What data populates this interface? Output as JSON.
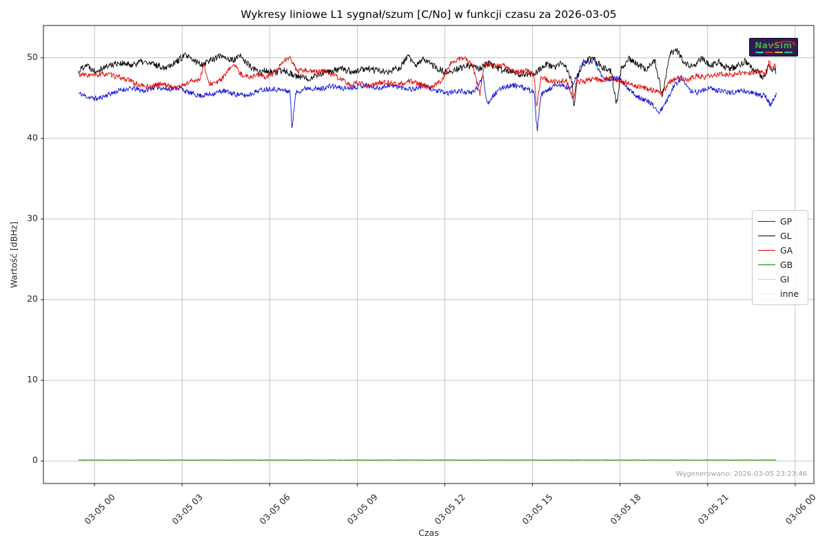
{
  "figure": {
    "generated_note": "Wygenerowano: 2026-03-05 23:23:46",
    "background": "#ffffff"
  },
  "logo": {
    "text": "NavSim",
    "bg": "#311b52",
    "text_color": "#3cb043",
    "swoosh_color": "#d42a1e",
    "subtext_dash_colors": [
      "#2ad4d4",
      "#d43a2a",
      "#e0c030",
      "#2ad46a"
    ]
  },
  "chart_data": {
    "type": "line",
    "title": "Wykresy liniowe L1 sygnał/szum [C/No] w funkcji czasu za 2026-03-05",
    "xlabel": "Czas",
    "ylabel": "Wartość [dBHz]",
    "grid": true,
    "grid_color": "#b5b5b5",
    "frame_color": "#1a1a1a",
    "legend_position": "center right",
    "x_ticks": [
      {
        "hour": 0,
        "label": "03-05 00"
      },
      {
        "hour": 3,
        "label": "03-05 03"
      },
      {
        "hour": 6,
        "label": "03-05 06"
      },
      {
        "hour": 9,
        "label": "03-05 09"
      },
      {
        "hour": 12,
        "label": "03-05 12"
      },
      {
        "hour": 15,
        "label": "03-05 15"
      },
      {
        "hour": 18,
        "label": "03-05 18"
      },
      {
        "hour": 21,
        "label": "03-05 21"
      },
      {
        "hour": 24,
        "label": "03-06 00"
      }
    ],
    "y_ticks": [
      0,
      10,
      20,
      30,
      40,
      50
    ],
    "xlim_hours": [
      -1.75,
      24.64
    ],
    "ylim": [
      -2.8,
      54.0
    ],
    "series": [
      {
        "name": "GP",
        "color": "#0d0dd6",
        "width": 0.9,
        "noise": 0.32,
        "seed": 11,
        "z": 0,
        "keypoints": [
          [
            -0.55,
            45.6
          ],
          [
            -0.2,
            45.1
          ],
          [
            0.1,
            44.9
          ],
          [
            0.5,
            45.5
          ],
          [
            0.9,
            46.0
          ],
          [
            1.3,
            46.2
          ],
          [
            1.7,
            45.9
          ],
          [
            2.1,
            46.4
          ],
          [
            2.5,
            46.1
          ],
          [
            2.9,
            46.3
          ],
          [
            3.2,
            45.7
          ],
          [
            3.6,
            45.3
          ],
          [
            4.0,
            45.5
          ],
          [
            4.4,
            45.9
          ],
          [
            4.8,
            45.5
          ],
          [
            5.2,
            45.3
          ],
          [
            5.6,
            45.9
          ],
          [
            6.0,
            46.2
          ],
          [
            6.4,
            46.0
          ],
          [
            6.7,
            45.8
          ],
          [
            6.76,
            41.3
          ],
          [
            6.9,
            45.7
          ],
          [
            7.3,
            46.3
          ],
          [
            7.7,
            46.1
          ],
          [
            8.1,
            46.5
          ],
          [
            8.5,
            46.2
          ],
          [
            8.9,
            46.4
          ],
          [
            9.3,
            46.6
          ],
          [
            9.7,
            46.2
          ],
          [
            10.1,
            46.6
          ],
          [
            10.5,
            46.3
          ],
          [
            10.9,
            46.1
          ],
          [
            11.3,
            46.5
          ],
          [
            11.7,
            45.9
          ],
          [
            12.1,
            45.6
          ],
          [
            12.5,
            45.9
          ],
          [
            12.9,
            45.6
          ],
          [
            13.15,
            46.4
          ],
          [
            13.3,
            48.0
          ],
          [
            13.45,
            44.3
          ],
          [
            13.65,
            45.3
          ],
          [
            14.0,
            46.4
          ],
          [
            14.4,
            46.6
          ],
          [
            14.8,
            46.1
          ],
          [
            15.05,
            45.8
          ],
          [
            15.16,
            41.0
          ],
          [
            15.3,
            45.4
          ],
          [
            15.7,
            46.4
          ],
          [
            16.0,
            46.6
          ],
          [
            16.3,
            46.1
          ],
          [
            16.55,
            47.9
          ],
          [
            16.75,
            49.8
          ],
          [
            16.95,
            49.2
          ],
          [
            17.1,
            49.9
          ],
          [
            17.35,
            47.9
          ],
          [
            17.65,
            47.2
          ],
          [
            17.95,
            47.5
          ],
          [
            18.25,
            46.2
          ],
          [
            18.55,
            45.3
          ],
          [
            18.85,
            44.8
          ],
          [
            19.1,
            44.2
          ],
          [
            19.35,
            43.2
          ],
          [
            19.6,
            44.6
          ],
          [
            19.85,
            46.6
          ],
          [
            20.1,
            47.5
          ],
          [
            20.35,
            46.0
          ],
          [
            20.65,
            45.7
          ],
          [
            21.0,
            46.2
          ],
          [
            21.4,
            45.9
          ],
          [
            21.8,
            45.7
          ],
          [
            22.2,
            45.9
          ],
          [
            22.6,
            45.6
          ],
          [
            23.0,
            45.2
          ],
          [
            23.15,
            44.1
          ],
          [
            23.35,
            45.4
          ]
        ]
      },
      {
        "name": "GL",
        "color": "#000000",
        "width": 0.9,
        "noise": 0.42,
        "seed": 22,
        "z": 1,
        "keypoints": [
          [
            -0.55,
            48.3
          ],
          [
            -0.3,
            49.2
          ],
          [
            0.0,
            48.4
          ],
          [
            0.4,
            48.9
          ],
          [
            0.8,
            49.4
          ],
          [
            1.2,
            49.1
          ],
          [
            1.6,
            49.5
          ],
          [
            2.0,
            49.2
          ],
          [
            2.4,
            48.8
          ],
          [
            2.8,
            49.5
          ],
          [
            3.1,
            50.3
          ],
          [
            3.4,
            49.6
          ],
          [
            3.7,
            49.2
          ],
          [
            4.0,
            49.8
          ],
          [
            4.4,
            50.3
          ],
          [
            4.7,
            49.6
          ],
          [
            5.0,
            50.2
          ],
          [
            5.3,
            49.0
          ],
          [
            5.6,
            48.2
          ],
          [
            5.9,
            48.4
          ],
          [
            6.2,
            48.1
          ],
          [
            6.5,
            48.5
          ],
          [
            6.9,
            47.7
          ],
          [
            7.3,
            47.4
          ],
          [
            7.7,
            48.0
          ],
          [
            8.1,
            48.3
          ],
          [
            8.5,
            48.6
          ],
          [
            8.9,
            48.2
          ],
          [
            9.3,
            48.7
          ],
          [
            9.7,
            48.4
          ],
          [
            10.1,
            48.2
          ],
          [
            10.5,
            48.9
          ],
          [
            10.75,
            50.3
          ],
          [
            11.0,
            48.9
          ],
          [
            11.3,
            49.9
          ],
          [
            11.6,
            49.0
          ],
          [
            12.0,
            48.2
          ],
          [
            12.4,
            48.6
          ],
          [
            12.8,
            49.0
          ],
          [
            13.2,
            48.6
          ],
          [
            13.5,
            49.3
          ],
          [
            13.9,
            48.5
          ],
          [
            14.3,
            48.2
          ],
          [
            14.7,
            47.9
          ],
          [
            15.1,
            48.1
          ],
          [
            15.45,
            49.3
          ],
          [
            15.75,
            48.7
          ],
          [
            16.05,
            49.4
          ],
          [
            16.35,
            47.2
          ],
          [
            16.42,
            43.6
          ],
          [
            16.55,
            47.8
          ],
          [
            16.85,
            49.7
          ],
          [
            17.1,
            49.9
          ],
          [
            17.4,
            48.9
          ],
          [
            17.7,
            48.4
          ],
          [
            17.88,
            44.2
          ],
          [
            18.05,
            48.8
          ],
          [
            18.3,
            49.9
          ],
          [
            18.6,
            49.2
          ],
          [
            18.9,
            48.6
          ],
          [
            19.2,
            49.6
          ],
          [
            19.45,
            45.2
          ],
          [
            19.7,
            50.5
          ],
          [
            19.95,
            50.9
          ],
          [
            20.2,
            49.3
          ],
          [
            20.5,
            48.8
          ],
          [
            20.8,
            49.9
          ],
          [
            21.1,
            49.1
          ],
          [
            21.4,
            49.5
          ],
          [
            21.7,
            48.6
          ],
          [
            22.0,
            48.9
          ],
          [
            22.3,
            49.6
          ],
          [
            22.6,
            48.4
          ],
          [
            22.9,
            47.6
          ],
          [
            23.1,
            48.8
          ],
          [
            23.35,
            48.4
          ]
        ]
      },
      {
        "name": "GA",
        "color": "#e00000",
        "width": 0.9,
        "noise": 0.32,
        "seed": 33,
        "z": 2,
        "keypoints": [
          [
            -0.55,
            47.9
          ],
          [
            0.0,
            47.8
          ],
          [
            0.4,
            48.0
          ],
          [
            0.8,
            47.6
          ],
          [
            1.2,
            47.2
          ],
          [
            1.5,
            46.6
          ],
          [
            1.9,
            46.4
          ],
          [
            2.3,
            46.8
          ],
          [
            2.7,
            46.3
          ],
          [
            3.0,
            46.5
          ],
          [
            3.3,
            47.1
          ],
          [
            3.6,
            47.3
          ],
          [
            3.75,
            49.2
          ],
          [
            3.9,
            46.8
          ],
          [
            4.2,
            46.9
          ],
          [
            4.5,
            47.9
          ],
          [
            4.75,
            49.3
          ],
          [
            5.0,
            48.0
          ],
          [
            5.3,
            47.6
          ],
          [
            5.6,
            47.9
          ],
          [
            5.9,
            47.6
          ],
          [
            6.2,
            48.2
          ],
          [
            6.5,
            49.7
          ],
          [
            6.7,
            49.9
          ],
          [
            6.95,
            48.3
          ],
          [
            7.25,
            48.5
          ],
          [
            7.55,
            48.2
          ],
          [
            7.85,
            48.4
          ],
          [
            8.15,
            47.9
          ],
          [
            8.45,
            47.3
          ],
          [
            8.75,
            46.6
          ],
          [
            9.05,
            46.9
          ],
          [
            9.35,
            46.5
          ],
          [
            9.65,
            46.8
          ],
          [
            10.0,
            47.0
          ],
          [
            10.4,
            46.7
          ],
          [
            10.8,
            47.1
          ],
          [
            11.2,
            46.6
          ],
          [
            11.5,
            46.3
          ],
          [
            11.9,
            47.2
          ],
          [
            12.2,
            49.3
          ],
          [
            12.45,
            49.8
          ],
          [
            12.7,
            49.9
          ],
          [
            12.95,
            49.0
          ],
          [
            13.2,
            45.5
          ],
          [
            13.35,
            49.3
          ],
          [
            13.55,
            49.1
          ],
          [
            13.75,
            48.9
          ],
          [
            13.95,
            49.3
          ],
          [
            14.2,
            48.5
          ],
          [
            14.5,
            48.2
          ],
          [
            14.8,
            48.4
          ],
          [
            15.05,
            47.9
          ],
          [
            15.14,
            43.9
          ],
          [
            15.3,
            47.7
          ],
          [
            15.6,
            47.1
          ],
          [
            15.9,
            46.9
          ],
          [
            16.15,
            47.3
          ],
          [
            16.4,
            44.8
          ],
          [
            16.5,
            47.0
          ],
          [
            16.8,
            47.1
          ],
          [
            17.1,
            47.4
          ],
          [
            17.4,
            47.2
          ],
          [
            17.7,
            47.5
          ],
          [
            18.0,
            47.1
          ],
          [
            18.3,
            46.8
          ],
          [
            18.6,
            46.4
          ],
          [
            18.9,
            46.2
          ],
          [
            19.2,
            45.9
          ],
          [
            19.45,
            45.7
          ],
          [
            19.7,
            47.0
          ],
          [
            20.0,
            47.5
          ],
          [
            20.3,
            47.2
          ],
          [
            20.6,
            47.7
          ],
          [
            20.9,
            47.6
          ],
          [
            21.2,
            47.9
          ],
          [
            21.5,
            48.0
          ],
          [
            21.8,
            47.8
          ],
          [
            22.1,
            48.2
          ],
          [
            22.4,
            48.1
          ],
          [
            22.7,
            48.3
          ],
          [
            23.0,
            48.0
          ],
          [
            23.1,
            49.5
          ],
          [
            23.22,
            48.4
          ],
          [
            23.3,
            49.3
          ],
          [
            23.35,
            48.9
          ]
        ]
      },
      {
        "name": "GB",
        "color": "#007f00",
        "width": 1.1,
        "noise": 0.02,
        "seed": 44,
        "z": 4,
        "keypoints": [
          [
            -0.55,
            0.1
          ],
          [
            23.35,
            0.1
          ]
        ]
      },
      {
        "name": "GI",
        "color": "#add8e6",
        "width": 1.0,
        "noise": 0.02,
        "seed": 55,
        "z": 3,
        "keypoints": [
          [
            -0.55,
            0.1
          ],
          [
            23.35,
            0.1
          ]
        ]
      },
      {
        "name": "inne",
        "color": "#ffe4c4",
        "width": 1.0,
        "noise": 0.02,
        "seed": 66,
        "z": 5,
        "keypoints": [
          [
            -0.55,
            0.0
          ],
          [
            23.35,
            0.0
          ]
        ]
      }
    ]
  }
}
